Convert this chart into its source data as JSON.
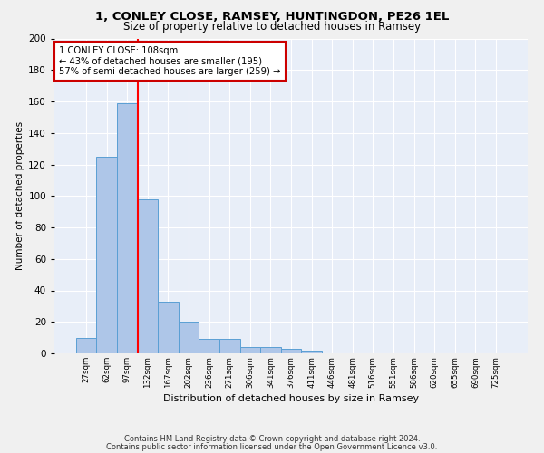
{
  "title1": "1, CONLEY CLOSE, RAMSEY, HUNTINGDON, PE26 1EL",
  "title2": "Size of property relative to detached houses in Ramsey",
  "xlabel": "Distribution of detached houses by size in Ramsey",
  "ylabel": "Number of detached properties",
  "categories": [
    "27sqm",
    "62sqm",
    "97sqm",
    "132sqm",
    "167sqm",
    "202sqm",
    "236sqm",
    "271sqm",
    "306sqm",
    "341sqm",
    "376sqm",
    "411sqm",
    "446sqm",
    "481sqm",
    "516sqm",
    "551sqm",
    "586sqm",
    "620sqm",
    "655sqm",
    "690sqm",
    "725sqm"
  ],
  "values": [
    10,
    125,
    159,
    98,
    33,
    20,
    9,
    9,
    4,
    4,
    3,
    2,
    0,
    0,
    0,
    0,
    0,
    0,
    0,
    0,
    0
  ],
  "bar_color": "#aec6e8",
  "bar_edge_color": "#5a9fd4",
  "bg_color": "#e8eef8",
  "grid_color": "#ffffff",
  "red_line_x": 2.5,
  "annotation_line1": "1 CONLEY CLOSE: 108sqm",
  "annotation_line2": "← 43% of detached houses are smaller (195)",
  "annotation_line3": "57% of semi-detached houses are larger (259) →",
  "box_facecolor": "#ffffff",
  "box_edgecolor": "#cc0000",
  "footer1": "Contains HM Land Registry data © Crown copyright and database right 2024.",
  "footer2": "Contains public sector information licensed under the Open Government Licence v3.0.",
  "ylim": [
    0,
    200
  ],
  "yticks": [
    0,
    20,
    40,
    60,
    80,
    100,
    120,
    140,
    160,
    180,
    200
  ],
  "title1_fontsize": 9.5,
  "title2_fontsize": 8.5,
  "ylabel_fontsize": 7.5,
  "xlabel_fontsize": 8.0,
  "ytick_fontsize": 7.5,
  "xtick_fontsize": 6.2,
  "annotation_fontsize": 7.2,
  "footer_fontsize": 6.0
}
